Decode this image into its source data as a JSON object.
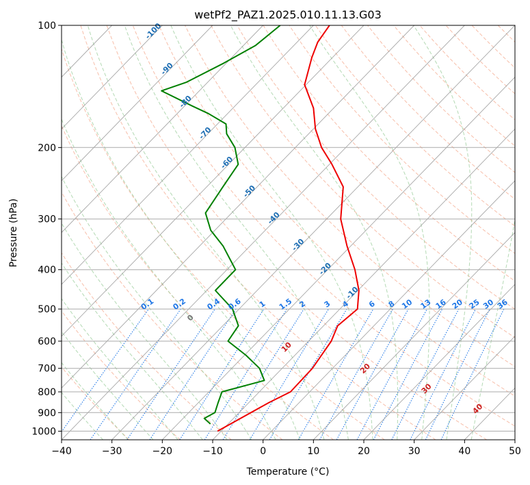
{
  "chart_data": {
    "type": "line",
    "title": "wetPf2_PAZ1.2025.010.11.13.G03",
    "xlabel": "Temperature (°C)",
    "ylabel": "Pressure (hPa)",
    "xlim": [
      -40,
      50
    ],
    "ylim": [
      1050,
      100
    ],
    "y_scale": "log",
    "x_ticks": [
      "-40",
      "-30",
      "-20",
      "-10",
      "0",
      "10",
      "20",
      "30",
      "40",
      "50"
    ],
    "y_ticks": [
      "100",
      "200",
      "300",
      "400",
      "500",
      "600",
      "700",
      "800",
      "900",
      "1000"
    ],
    "grid": true,
    "skew": "skew-T log-p diagram",
    "colors": {
      "temperature": "#ee0000",
      "dewpoint": "#008000",
      "isotherm": "#999999",
      "dry_adiabat": "#f4a384",
      "moist_adiabat": "#99cc99",
      "mixing_ratio": "#1f77e6",
      "isotherm_label": "#1f6fb4",
      "moist_label": "#cc2222"
    },
    "series": [
      {
        "key": "temperature",
        "points": [
          [
            -10.7,
            1000
          ],
          [
            -6.0,
            850
          ],
          [
            -3.8,
            800
          ],
          [
            -4.0,
            700
          ],
          [
            -5.5,
            600
          ],
          [
            -7.2,
            550
          ],
          [
            -6.5,
            500
          ],
          [
            -9.8,
            450
          ],
          [
            -14.6,
            400
          ],
          [
            -20.7,
            350
          ],
          [
            -27.2,
            300
          ],
          [
            -32.9,
            250
          ],
          [
            -39.5,
            220
          ],
          [
            -44.8,
            200
          ],
          [
            -49.6,
            180
          ],
          [
            -54.0,
            160
          ],
          [
            -60.3,
            140
          ],
          [
            -64.1,
            120
          ],
          [
            -65.9,
            110
          ],
          [
            -66.8,
            100
          ]
        ]
      },
      {
        "key": "dewpoint",
        "points": [
          [
            -13.5,
            960
          ],
          [
            -15.8,
            930
          ],
          [
            -14.8,
            900
          ],
          [
            -16.1,
            850
          ],
          [
            -17.4,
            800
          ],
          [
            -11.2,
            750
          ],
          [
            -14.5,
            700
          ],
          [
            -19.7,
            650
          ],
          [
            -26.0,
            600
          ],
          [
            -26.9,
            550
          ],
          [
            -31.3,
            500
          ],
          [
            -38.3,
            450
          ],
          [
            -38.3,
            400
          ],
          [
            -45.3,
            350
          ],
          [
            -50.8,
            320
          ],
          [
            -55.2,
            290
          ],
          [
            -56.8,
            250
          ],
          [
            -58.1,
            220
          ],
          [
            -62.0,
            200
          ],
          [
            -66.3,
            185
          ],
          [
            -68.3,
            175
          ],
          [
            -73.8,
            165
          ],
          [
            -78.5,
            158
          ],
          [
            -87.5,
            145
          ],
          [
            -84.2,
            138
          ],
          [
            -80.5,
            124
          ],
          [
            -77.6,
            112
          ],
          [
            -76.6,
            100
          ]
        ]
      }
    ],
    "isotherm_labels": [
      "-100",
      "-90",
      "-80",
      "-70",
      "-60",
      "-50",
      "-40",
      "-30",
      "-20",
      "-10"
    ],
    "mixing_ratio_labels": [
      "0.1",
      "0.2",
      "0.4",
      "0.6",
      "1",
      "1.5",
      "2",
      "3",
      "4",
      "6",
      "8",
      "10",
      "13",
      "16",
      "20",
      "25",
      "30",
      "36"
    ],
    "moist_adiabat_labels": [
      "0",
      "10",
      "20",
      "30",
      "40"
    ]
  }
}
